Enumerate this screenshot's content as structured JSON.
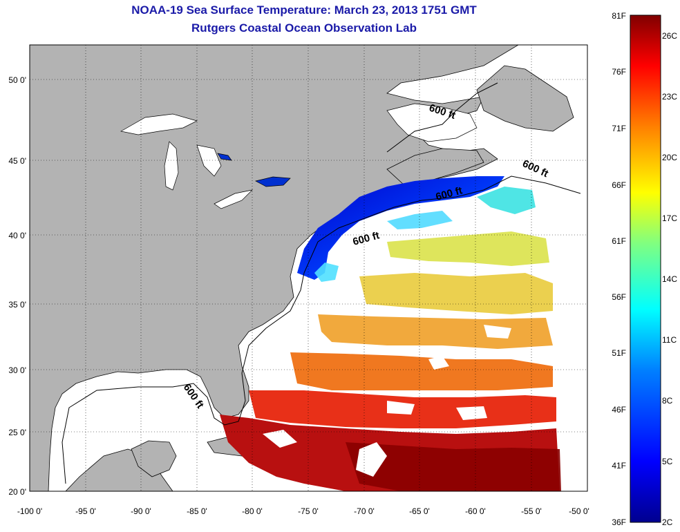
{
  "title": "NOAA-19 Sea Surface Temperature:  March 23, 2013 1751 GMT",
  "subtitle": "Rutgers Coastal Ocean Observation Lab",
  "axes": {
    "lat_ticks": [
      "50 0'",
      "45 0'",
      "40 0'",
      "35 0'",
      "30 0'",
      "25 0'",
      "20 0'"
    ],
    "lon_ticks": [
      "-100 0'",
      "-95 0'",
      "-90 0'",
      "-85 0'",
      "-80 0'",
      "-75 0'",
      "-70 0'",
      "-65 0'",
      "-60 0'",
      "-55 0'",
      "-50 0'"
    ]
  },
  "contours": [
    {
      "label": "600 ft"
    },
    {
      "label": "600 ft"
    },
    {
      "label": "600 ft"
    },
    {
      "label": "600 ft"
    },
    {
      "label": "600 ft"
    }
  ],
  "colorbar": {
    "fahrenheit": [
      "81F",
      "76F",
      "71F",
      "66F",
      "61F",
      "56F",
      "51F",
      "46F",
      "41F",
      "36F"
    ],
    "celsius": [
      "26C",
      "23C",
      "20C",
      "17C",
      "14C",
      "11C",
      "8C",
      "5C",
      "2C"
    ],
    "colors": [
      "#00008f",
      "#0000ff",
      "#0080ff",
      "#00ffff",
      "#80ff80",
      "#ffff00",
      "#ff8000",
      "#ff0000",
      "#800000"
    ]
  },
  "colors": {
    "land": "#b3b3b3",
    "title": "#1a1aa8",
    "ocean_no_data": "#ffffff"
  }
}
